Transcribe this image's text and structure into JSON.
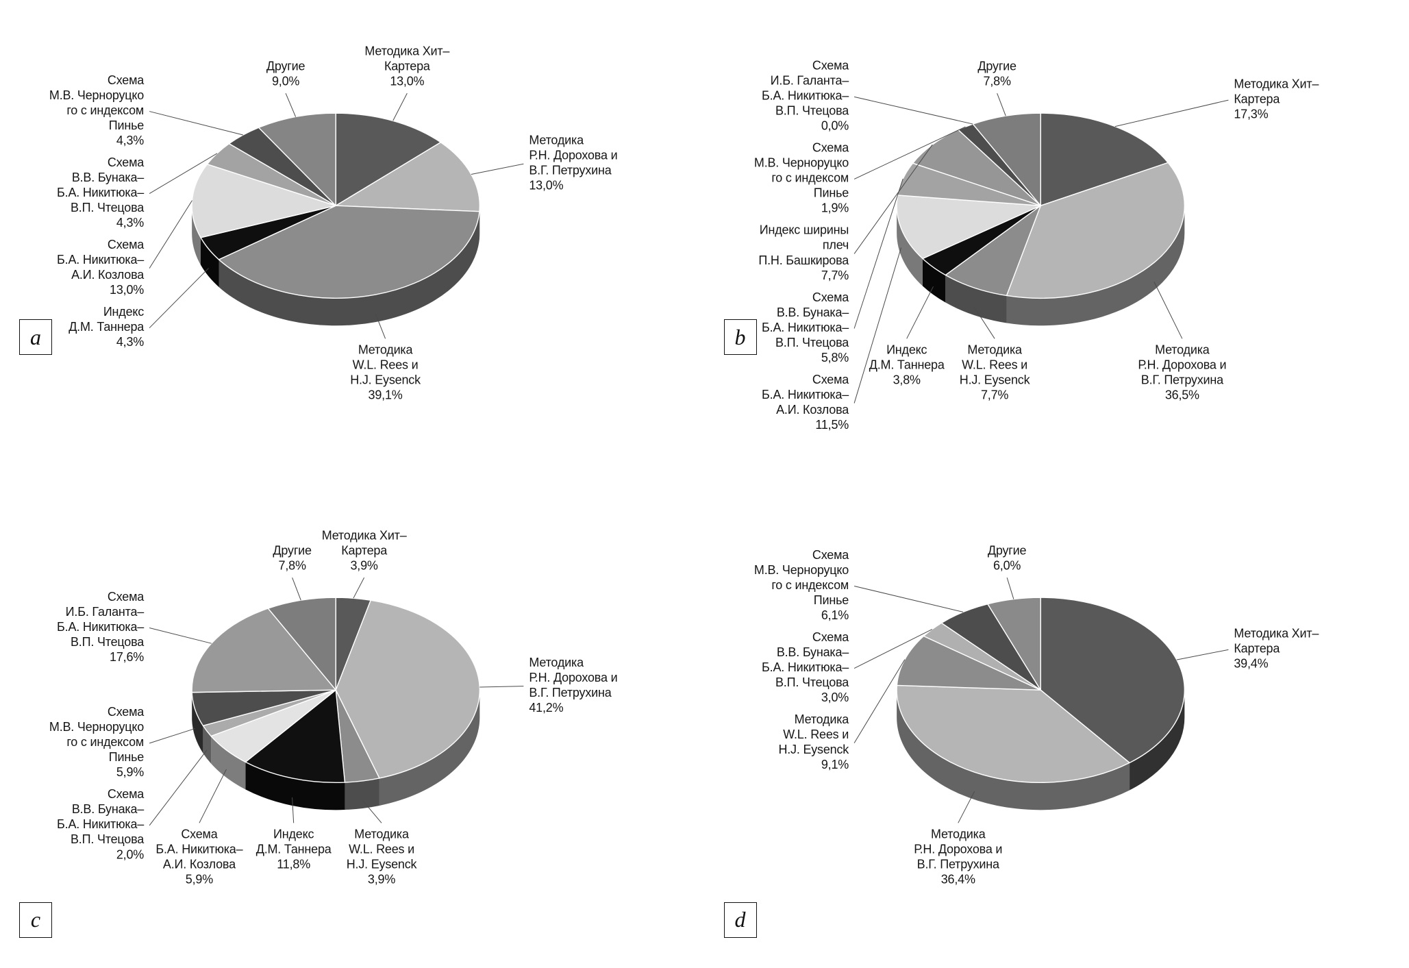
{
  "figure": {
    "background": "#ffffff",
    "text_color": "#161616"
  },
  "chart_data": [
    {
      "panel_label": "a",
      "type": "pie",
      "style": "3d",
      "legend_position": "around",
      "slices": [
        {
          "label": "Методика Хит–\nКартера",
          "pct_label": "13,0%",
          "value": 13.0,
          "color": "#595959"
        },
        {
          "label": "Методика\nР.Н. Дорохова и\nВ.Г. Петрухина",
          "pct_label": "13,0%",
          "value": 13.0,
          "color": "#b5b5b5"
        },
        {
          "label": "Методика\nW.L. Rees и\nH.J. Eysenck",
          "pct_label": "39,1%",
          "value": 39.1,
          "color": "#8c8c8c"
        },
        {
          "label": "Индекс\nД.М. Таннера",
          "pct_label": "4,3%",
          "value": 4.3,
          "color": "#0f0f0f"
        },
        {
          "label": "Схема\nБ.А. Никитюка–\nА.И. Козлова",
          "pct_label": "13,0%",
          "value": 13.0,
          "color": "#dcdcdc"
        },
        {
          "label": "Схема\nВ.В. Бунака–\nБ.А. Никитюка–\nВ.П. Чтецова",
          "pct_label": "4,3%",
          "value": 4.3,
          "color": "#a3a3a3"
        },
        {
          "label": "Схема\nМ.В. Черноруцко\nго с индексом\nПинье",
          "pct_label": "4,3%",
          "value": 4.3,
          "color": "#4d4d4d"
        },
        {
          "label": "Другие",
          "pct_label": "9,0%",
          "value": 9.0,
          "color": "#858585"
        }
      ]
    },
    {
      "panel_label": "b",
      "type": "pie",
      "style": "3d",
      "legend_position": "around",
      "slices": [
        {
          "label": "Методика Хит–\nКартера",
          "pct_label": "17,3%",
          "value": 17.3,
          "color": "#595959"
        },
        {
          "label": "Методика\nР.Н. Дорохова и\nВ.Г. Петрухина",
          "pct_label": "36,5%",
          "value": 36.5,
          "color": "#b5b5b5"
        },
        {
          "label": "Методика\nW.L. Rees и\nH.J. Eysenck",
          "pct_label": "7,7%",
          "value": 7.7,
          "color": "#8c8c8c"
        },
        {
          "label": "Индекс\nД.М. Таннера",
          "pct_label": "3,8%",
          "value": 3.8,
          "color": "#0f0f0f"
        },
        {
          "label": "Схема\nБ.А. Никитюка–\nА.И. Козлова",
          "pct_label": "11,5%",
          "value": 11.5,
          "color": "#dcdcdc"
        },
        {
          "label": "Схема\nВ.В. Бунака–\nБ.А. Никитюка–\nВ.П. Чтецова",
          "pct_label": "5,8%",
          "value": 5.8,
          "color": "#a3a3a3"
        },
        {
          "label": "Индекс ширины\nплеч\nП.Н. Башкирова",
          "pct_label": "7,7%",
          "value": 7.7,
          "color": "#969696"
        },
        {
          "label": "Схема\nМ.В. Черноруцко\nго с индексом\nПинье",
          "pct_label": "1,9%",
          "value": 1.9,
          "color": "#4d4d4d"
        },
        {
          "label": "Схема\nИ.Б. Галанта–\nБ.А. Никитюка–\nВ.П. Чтецова",
          "pct_label": "0,0%",
          "value": 0.0,
          "color": "#333333"
        },
        {
          "label": "Другие",
          "pct_label": "7,8%",
          "value": 7.8,
          "color": "#7d7d7d"
        }
      ]
    },
    {
      "panel_label": "c",
      "type": "pie",
      "style": "3d",
      "legend_position": "around",
      "slices": [
        {
          "label": "Методика Хит–\nКартера",
          "pct_label": "3,9%",
          "value": 3.9,
          "color": "#595959"
        },
        {
          "label": "Методика\nР.Н. Дорохова и\nВ.Г. Петрухина",
          "pct_label": "41,2%",
          "value": 41.2,
          "color": "#b5b5b5"
        },
        {
          "label": "Методика\nW.L. Rees и\nH.J. Eysenck",
          "pct_label": "3,9%",
          "value": 3.9,
          "color": "#8c8c8c"
        },
        {
          "label": "Индекс\nД.М. Таннера",
          "pct_label": "11,8%",
          "value": 11.8,
          "color": "#101010"
        },
        {
          "label": "Схема\nБ.А. Никитюка–\nА.И. Козлова",
          "pct_label": "5,9%",
          "value": 5.9,
          "color": "#e3e3e3"
        },
        {
          "label": "Схема\nВ.В. Бунака–\nБ.А. Никитюка–\nВ.П. Чтецова",
          "pct_label": "2,0%",
          "value": 2.0,
          "color": "#ababab"
        },
        {
          "label": "Схема\nМ.В. Черноруцко\nго с индексом\nПинье",
          "pct_label": "5,9%",
          "value": 5.9,
          "color": "#4d4d4d"
        },
        {
          "label": "Схема\nИ.Б. Галанта–\nБ.А. Никитюка–\nВ.П. Чтецова",
          "pct_label": "17,6%",
          "value": 17.6,
          "color": "#999999"
        },
        {
          "label": "Другие",
          "pct_label": "7,8%",
          "value": 7.8,
          "color": "#7d7d7d"
        }
      ]
    },
    {
      "panel_label": "d",
      "type": "pie",
      "style": "3d",
      "legend_position": "around",
      "slices": [
        {
          "label": "Методика Хит–\nКартера",
          "pct_label": "39,4%",
          "value": 39.4,
          "color": "#595959"
        },
        {
          "label": "Методика\nР.Н. Дорохова и\nВ.Г. Петрухина",
          "pct_label": "36,4%",
          "value": 36.4,
          "color": "#b5b5b5"
        },
        {
          "label": "Методика\nW.L. Rees и\nH.J. Eysenck",
          "pct_label": "9,1%",
          "value": 9.1,
          "color": "#8c8c8c"
        },
        {
          "label": "Схема\nВ.В. Бунака–\nБ.А. Никитюка–\nВ.П. Чтецова",
          "pct_label": "3,0%",
          "value": 3.0,
          "color": "#b0b0b0"
        },
        {
          "label": "Схема\nМ.В. Черноруцко\nго с индексом\nПинье",
          "pct_label": "6,1%",
          "value": 6.1,
          "color": "#4d4d4d"
        },
        {
          "label": "Другие",
          "pct_label": "6,0%",
          "value": 6.0,
          "color": "#8a8a8a"
        }
      ]
    }
  ]
}
